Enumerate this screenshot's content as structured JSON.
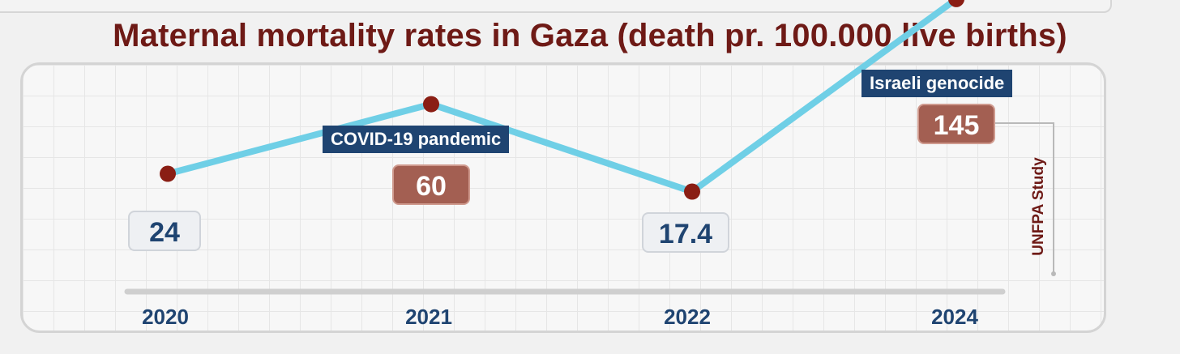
{
  "chart_data": {
    "type": "line",
    "title": "Maternal mortality rates in Gaza (death pr. 100.000 live births)",
    "categories": [
      "2020",
      "2021",
      "2022",
      "2024"
    ],
    "values": [
      24,
      60,
      17.4,
      145
    ],
    "value_labels": [
      "24",
      "60",
      "17.4",
      "145"
    ],
    "annotations": {
      "covid": "COVID-19 pandemic",
      "genocide": "Israeli genocide"
    },
    "source": "UNFPA Study",
    "colors": {
      "line": "#6fcfe6",
      "marker": "#8a1e14",
      "title": "#6e1a16",
      "label": "#1f4471",
      "highlight": "#a35f52"
    }
  }
}
